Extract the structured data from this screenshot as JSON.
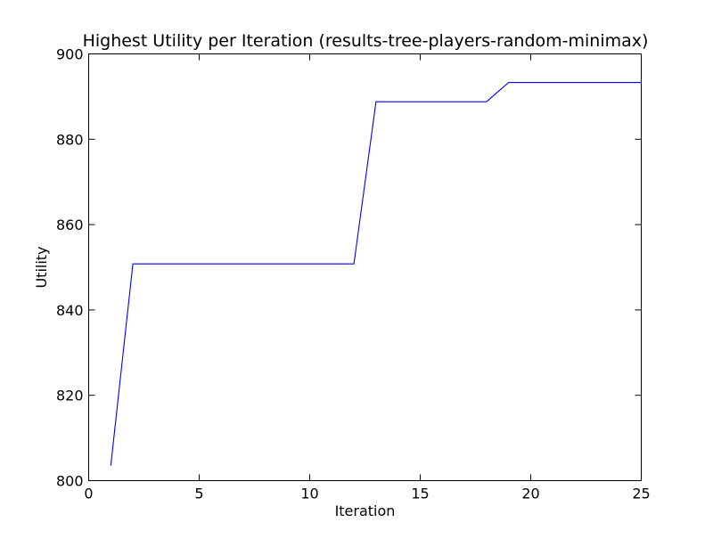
{
  "chart_data": {
    "type": "line",
    "title": "Highest Utility per Iteration (results-tree-players-random-minimax)",
    "xlabel": "Iteration",
    "ylabel": "Utility",
    "xlim": [
      0,
      25
    ],
    "ylim": [
      800,
      900
    ],
    "xticks": [
      0,
      5,
      10,
      15,
      20,
      25
    ],
    "yticks": [
      800,
      820,
      840,
      860,
      880,
      900
    ],
    "grid": false,
    "series": [
      {
        "color": "#0000ff",
        "x": [
          1,
          2,
          3,
          4,
          5,
          6,
          7,
          8,
          9,
          10,
          11,
          12,
          13,
          14,
          15,
          16,
          17,
          18,
          19,
          20,
          21,
          22,
          23,
          24,
          25
        ],
        "y": [
          803.5,
          850.8,
          850.8,
          850.8,
          850.8,
          850.8,
          850.8,
          850.8,
          850.8,
          850.8,
          850.8,
          850.8,
          888.8,
          888.8,
          888.8,
          888.8,
          888.8,
          888.8,
          893.3,
          893.3,
          893.3,
          893.3,
          893.3,
          893.3,
          893.3
        ]
      }
    ]
  }
}
